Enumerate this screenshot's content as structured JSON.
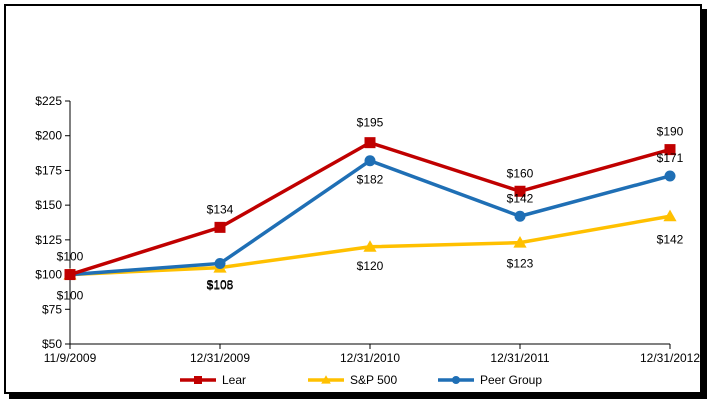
{
  "chart_data": {
    "type": "line",
    "categories": [
      "11/9/2009",
      "12/31/2009",
      "12/31/2010",
      "12/31/2011",
      "12/31/2012"
    ],
    "y_ticks": [
      "$50",
      "$75",
      "$100",
      "$125",
      "$150",
      "$175",
      "$200",
      "$225"
    ],
    "ylim": [
      50,
      225
    ],
    "grid": false,
    "legend_position": "bottom",
    "series": [
      {
        "name": "Lear",
        "color": "#C00000",
        "marker": "square",
        "values": [
          100,
          134,
          195,
          160,
          190
        ],
        "labels": [
          "$100",
          "$134",
          "$195",
          "$160",
          "$190"
        ]
      },
      {
        "name": "S&P 500",
        "color": "#FFC000",
        "marker": "triangle",
        "values": [
          100,
          105,
          120,
          123,
          142
        ],
        "labels": [
          "",
          "$105",
          "$120",
          "$123",
          "$142"
        ]
      },
      {
        "name": "Peer Group",
        "color": "#1F6FB5",
        "marker": "circle",
        "values": [
          100,
          108,
          182,
          142,
          171
        ],
        "labels": [
          "$100",
          "$108",
          "$182",
          "$142",
          "$171"
        ]
      }
    ]
  }
}
